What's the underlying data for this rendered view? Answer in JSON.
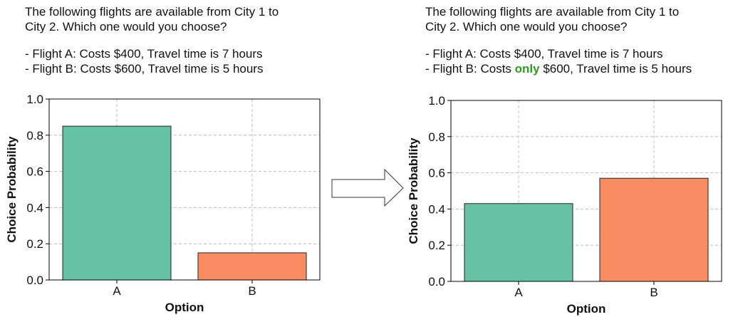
{
  "panels": [
    {
      "question": {
        "line1": "The following flights are available from City 1 to",
        "line2": "City 2. Which one would you choose?",
        "option_a": "- Flight A: Costs $400, Travel time is 7 hours",
        "option_b": "- Flight B: Costs $600, Travel time is 5 hours"
      }
    },
    {
      "question": {
        "line1": "The following flights are available from City 1 to",
        "line2": "City 2. Which one would you choose?",
        "option_a": "- Flight A: Costs $400, Travel time is 7 hours",
        "option_b_pre": "- Flight B: Costs ",
        "option_b_highlight": "only",
        "option_b_post": " $600, Travel time is 5 hours"
      }
    }
  ],
  "colors": {
    "bar_a": "#66c2a5",
    "bar_b": "#fc8d62",
    "highlight": "#2e9a1f",
    "grid": "#b0b0b0",
    "arrow": "#333333"
  },
  "arrow_icon": "right-arrow-icon",
  "chart_data": [
    {
      "type": "bar",
      "categories": [
        "A",
        "B"
      ],
      "values": [
        0.85,
        0.15
      ],
      "bar_colors": [
        "#66c2a5",
        "#fc8d62"
      ],
      "xlabel": "Option",
      "ylabel": "Choice Probability",
      "ylim": [
        0,
        1.0
      ],
      "yticks": [
        "0.0",
        "0.2",
        "0.4",
        "0.6",
        "0.8",
        "1.0"
      ],
      "grid": true
    },
    {
      "type": "bar",
      "categories": [
        "A",
        "B"
      ],
      "values": [
        0.43,
        0.57
      ],
      "bar_colors": [
        "#66c2a5",
        "#fc8d62"
      ],
      "xlabel": "Option",
      "ylabel": "Choice Probability",
      "ylim": [
        0,
        1.0
      ],
      "yticks": [
        "0.0",
        "0.2",
        "0.4",
        "0.6",
        "0.8",
        "1.0"
      ],
      "grid": true
    }
  ]
}
